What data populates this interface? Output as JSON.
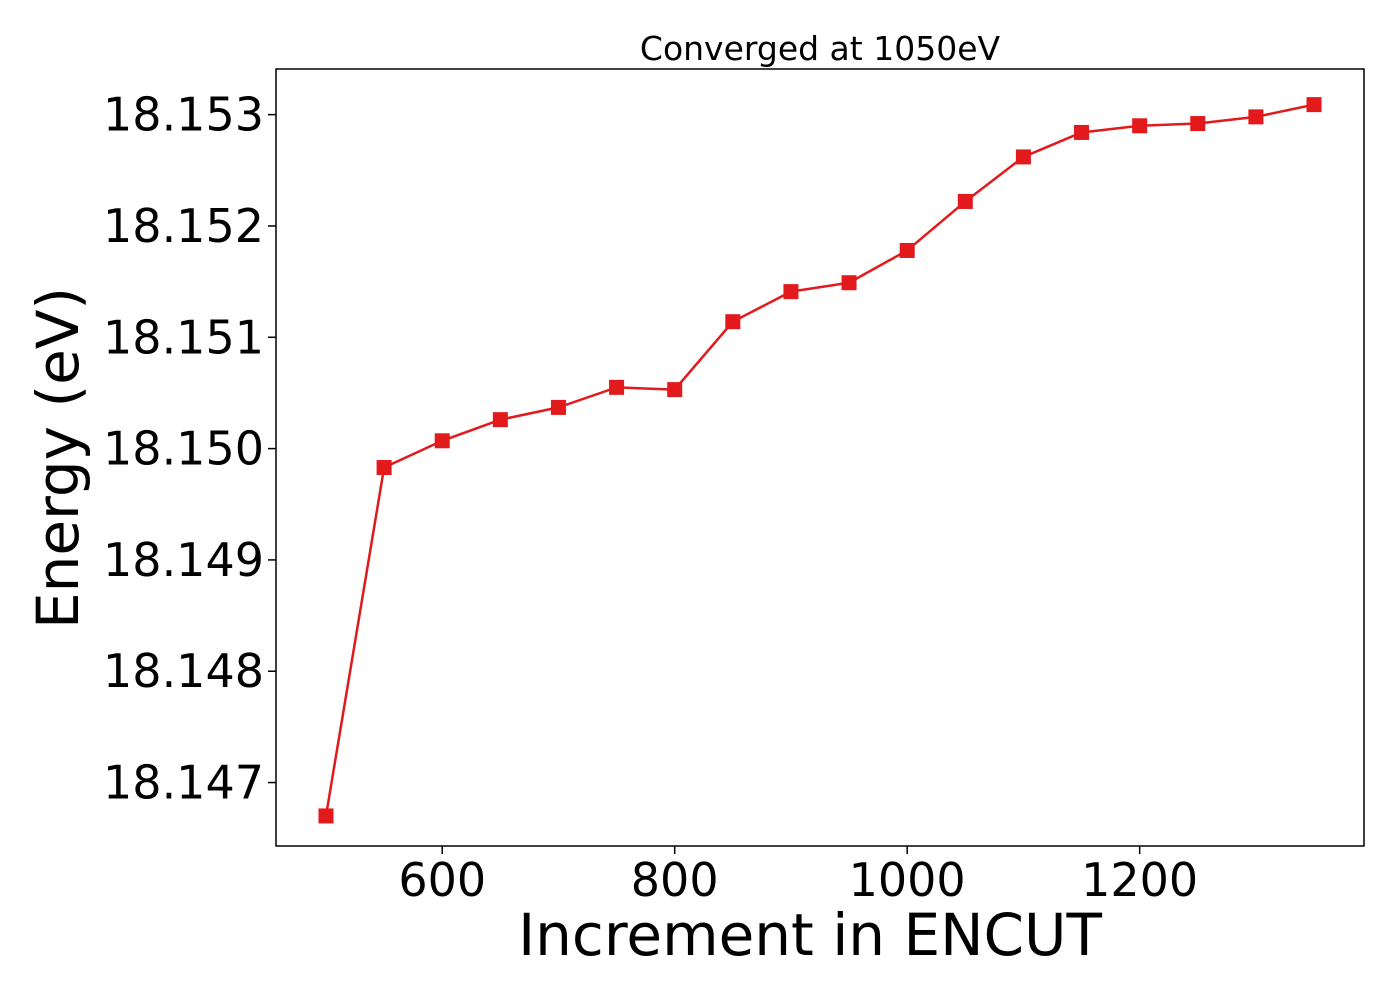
{
  "chart_data": {
    "type": "line",
    "title": "Converged at 1050eV",
    "xlabel": "Increment in ENCUT",
    "ylabel": "Energy (eV)",
    "xlim": [
      457,
      1393
    ],
    "ylim": [
      18.14643,
      18.15341
    ],
    "xticks": [
      600,
      800,
      1000,
      1200
    ],
    "yticks": [
      18.147,
      18.148,
      18.149,
      18.15,
      18.151,
      18.152,
      18.153
    ],
    "ytick_labels": [
      "18.147",
      "18.148",
      "18.149",
      "18.150",
      "18.151",
      "18.152",
      "18.153"
    ],
    "grid": false,
    "marker": "square",
    "color": "#e31a1c",
    "x": [
      500,
      550,
      600,
      650,
      700,
      750,
      800,
      850,
      900,
      950,
      1000,
      1050,
      1100,
      1150,
      1200,
      1250,
      1300,
      1350
    ],
    "series": [
      {
        "values": [
          18.1467,
          18.14983,
          18.15007,
          18.15026,
          18.15037,
          18.15055,
          18.15053,
          18.15114,
          18.15141,
          18.15149,
          18.15178,
          18.15222,
          18.15262,
          18.15284,
          18.1529,
          18.15292,
          18.15298,
          18.15309
        ]
      }
    ]
  }
}
